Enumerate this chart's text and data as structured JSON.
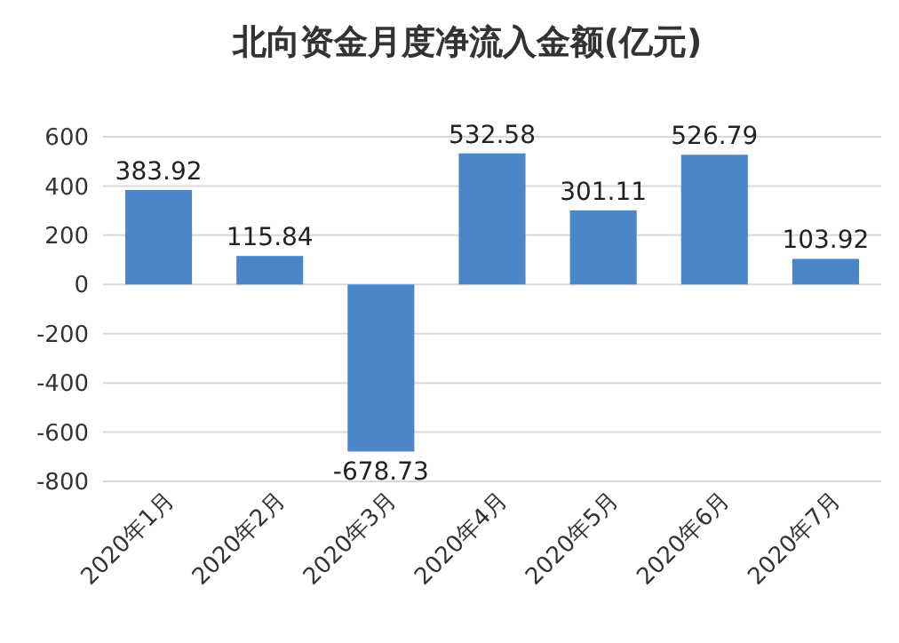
{
  "chart_data": {
    "type": "bar",
    "title": "北向资金月度净流入金额(亿元)",
    "categories": [
      "2020年1月",
      "2020年2月",
      "2020年3月",
      "2020年4月",
      "2020年5月",
      "2020年6月",
      "2020年7月"
    ],
    "values": [
      383.92,
      115.84,
      -678.73,
      532.58,
      301.11,
      526.79,
      103.92
    ],
    "color": "#4a86c8",
    "ylim": [
      -800,
      600
    ],
    "yticks": [
      -800,
      -600,
      -400,
      -200,
      0,
      200,
      400,
      600
    ],
    "grid": "y",
    "data_labels": true
  }
}
